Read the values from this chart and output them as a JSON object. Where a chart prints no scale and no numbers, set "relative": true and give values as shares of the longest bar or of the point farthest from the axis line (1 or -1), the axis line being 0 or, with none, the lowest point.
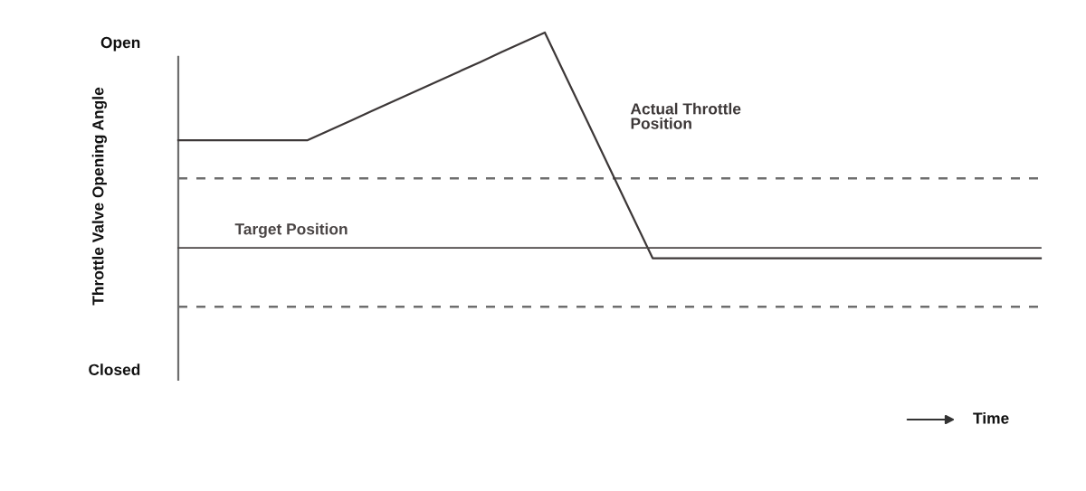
{
  "chart_data": {
    "type": "line",
    "ylabel": "Throttle Valve Opening Angle",
    "xlabel": "Time",
    "relative": true,
    "categories": [
      null,
      null,
      null,
      null,
      null,
      null,
      null,
      null,
      null,
      null,
      null,
      null,
      null,
      null,
      null,
      null,
      null,
      null,
      null,
      null,
      null,
      null,
      null,
      null,
      null,
      null,
      null,
      null,
      null,
      null,
      null,
      null,
      null,
      null,
      null,
      null,
      null,
      null,
      null,
      null,
      null
    ],
    "series": [
      {
        "name": "Actual Throttle Position",
        "color": "#3d3838",
        "values": [
          0.69,
          0.69,
          0.69,
          0.69,
          0.69,
          0.69,
          0.69,
          0.718,
          0.746,
          0.775,
          0.803,
          0.831,
          0.859,
          0.887,
          0.915,
          0.944,
          0.972,
          1,
          0.87,
          0.74,
          0.61,
          0.48,
          0.35,
          0.35,
          0.35,
          0.35,
          0.35,
          0.35,
          0.35,
          0.35,
          0.35,
          0.35,
          0.35,
          0.35,
          0.35,
          0.35,
          0.35,
          0.35,
          0.35,
          0.35,
          0.35
        ]
      },
      {
        "name": "Target Position",
        "color": "#4a4545",
        "values": [
          0.38,
          0.38,
          0.38,
          0.38,
          0.38,
          0.38,
          0.38,
          0.38,
          0.38,
          0.38,
          0.38,
          0.38,
          0.38,
          0.38,
          0.38,
          0.38,
          0.38,
          0.38,
          0.38,
          0.38,
          0.38,
          0.38,
          0.38,
          0.38,
          0.38,
          0.38,
          0.38,
          0.38,
          0.38,
          0.38,
          0.38,
          0.38,
          0.38,
          0.38,
          0.38,
          0.38,
          0.38,
          0.38,
          0.38,
          0.38,
          0.38
        ]
      }
    ],
    "ref_lines": [
      {
        "axis": "y",
        "value": 0.58,
        "color": "#6e6e6e",
        "line_style": "dashed"
      },
      {
        "axis": "y",
        "value": 0.21,
        "color": "#6e6e6e",
        "line_style": "dashed"
      }
    ],
    "annotations": [
      "Open",
      "Closed"
    ]
  }
}
